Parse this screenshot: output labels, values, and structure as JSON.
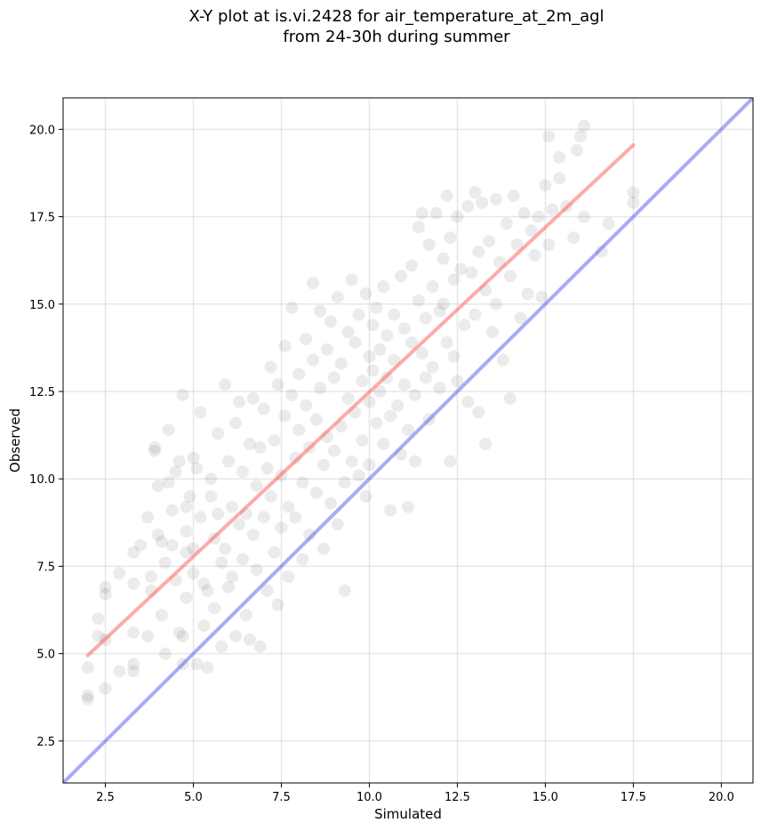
{
  "chart_data": {
    "type": "scatter",
    "title_line1": "X-Y plot at is.vi.2428 for air_temperature_at_2m_agl",
    "title_line2": "from 24-30h during summer",
    "xlabel": "Simulated",
    "ylabel": "Observed",
    "xlim": [
      1.3,
      20.9
    ],
    "ylim": [
      1.3,
      20.9
    ],
    "xticks": [
      2.5,
      5.0,
      7.5,
      10.0,
      12.5,
      15.0,
      17.5,
      20.0
    ],
    "yticks": [
      2.5,
      5.0,
      7.5,
      10.0,
      12.5,
      15.0,
      17.5,
      20.0
    ],
    "xtick_labels": [
      "2.5",
      "5.0",
      "7.5",
      "10.0",
      "12.5",
      "15.0",
      "17.5",
      "20.0"
    ],
    "ytick_labels": [
      "2.5",
      "5.0",
      "7.5",
      "10.0",
      "12.5",
      "15.0",
      "17.5",
      "20.0"
    ],
    "grid": true,
    "point_color": "#000000",
    "point_opacity": 0.08,
    "reference_lines": [
      {
        "color": "#ff5555",
        "x": [
          2.0,
          17.5
        ],
        "y": [
          4.95,
          19.55
        ]
      },
      {
        "color": "#5555ee",
        "x": [
          1.3,
          20.9
        ],
        "y": [
          1.3,
          20.9
        ]
      }
    ],
    "points": [
      [
        2.0,
        3.7
      ],
      [
        2.0,
        3.8
      ],
      [
        2.0,
        4.6
      ],
      [
        2.3,
        5.5
      ],
      [
        2.3,
        6.0
      ],
      [
        2.5,
        4.0
      ],
      [
        2.5,
        5.4
      ],
      [
        2.5,
        6.7
      ],
      [
        2.5,
        6.9
      ],
      [
        2.9,
        4.5
      ],
      [
        2.9,
        7.3
      ],
      [
        3.3,
        4.5
      ],
      [
        3.3,
        4.7
      ],
      [
        3.3,
        5.6
      ],
      [
        3.3,
        7.0
      ],
      [
        3.3,
        7.9
      ],
      [
        3.5,
        8.1
      ],
      [
        3.7,
        8.9
      ],
      [
        3.7,
        5.5
      ],
      [
        3.8,
        6.8
      ],
      [
        3.8,
        7.2
      ],
      [
        3.9,
        10.8
      ],
      [
        3.9,
        10.9
      ],
      [
        4.0,
        9.8
      ],
      [
        4.0,
        8.4
      ],
      [
        4.1,
        8.2
      ],
      [
        4.1,
        6.1
      ],
      [
        4.2,
        7.6
      ],
      [
        4.2,
        5.0
      ],
      [
        4.3,
        9.9
      ],
      [
        4.3,
        11.4
      ],
      [
        4.4,
        8.1
      ],
      [
        4.4,
        9.1
      ],
      [
        4.5,
        7.1
      ],
      [
        4.5,
        10.2
      ],
      [
        4.6,
        10.5
      ],
      [
        4.6,
        5.6
      ],
      [
        4.7,
        5.5
      ],
      [
        4.7,
        12.4
      ],
      [
        4.7,
        4.7
      ],
      [
        4.8,
        6.6
      ],
      [
        4.8,
        7.9
      ],
      [
        4.8,
        9.2
      ],
      [
        4.8,
        8.5
      ],
      [
        4.9,
        9.5
      ],
      [
        5.0,
        10.6
      ],
      [
        5.0,
        7.3
      ],
      [
        5.0,
        8.0
      ],
      [
        5.1,
        10.3
      ],
      [
        5.1,
        4.7
      ],
      [
        5.2,
        11.9
      ],
      [
        5.2,
        8.9
      ],
      [
        5.3,
        5.8
      ],
      [
        5.3,
        7.0
      ],
      [
        5.4,
        6.8
      ],
      [
        5.4,
        4.6
      ],
      [
        5.5,
        9.5
      ],
      [
        5.5,
        10.0
      ],
      [
        5.6,
        8.3
      ],
      [
        5.6,
        6.3
      ],
      [
        5.7,
        11.3
      ],
      [
        5.7,
        9.0
      ],
      [
        5.8,
        7.6
      ],
      [
        5.8,
        5.2
      ],
      [
        5.9,
        12.7
      ],
      [
        5.9,
        8.0
      ],
      [
        6.0,
        6.9
      ],
      [
        6.0,
        10.5
      ],
      [
        6.1,
        9.2
      ],
      [
        6.1,
        7.2
      ],
      [
        6.2,
        11.6
      ],
      [
        6.2,
        5.5
      ],
      [
        6.3,
        12.2
      ],
      [
        6.3,
        8.7
      ],
      [
        6.4,
        7.7
      ],
      [
        6.4,
        10.2
      ],
      [
        6.5,
        9.0
      ],
      [
        6.5,
        6.1
      ],
      [
        6.6,
        11.0
      ],
      [
        6.6,
        5.4
      ],
      [
        6.7,
        12.3
      ],
      [
        6.7,
        8.4
      ],
      [
        6.8,
        7.4
      ],
      [
        6.8,
        9.8
      ],
      [
        6.9,
        10.9
      ],
      [
        6.9,
        5.2
      ],
      [
        7.0,
        12.0
      ],
      [
        7.0,
        8.9
      ],
      [
        7.1,
        6.8
      ],
      [
        7.1,
        10.3
      ],
      [
        7.2,
        9.5
      ],
      [
        7.2,
        13.2
      ],
      [
        7.3,
        11.1
      ],
      [
        7.3,
        7.9
      ],
      [
        7.4,
        6.4
      ],
      [
        7.4,
        12.7
      ],
      [
        7.5,
        10.1
      ],
      [
        7.5,
        8.6
      ],
      [
        7.6,
        13.8
      ],
      [
        7.6,
        11.8
      ],
      [
        7.7,
        9.2
      ],
      [
        7.7,
        7.2
      ],
      [
        7.8,
        14.9
      ],
      [
        7.8,
        12.4
      ],
      [
        7.9,
        10.6
      ],
      [
        7.9,
        8.9
      ],
      [
        8.0,
        13.0
      ],
      [
        8.0,
        11.4
      ],
      [
        8.1,
        9.9
      ],
      [
        8.1,
        7.7
      ],
      [
        8.2,
        14.0
      ],
      [
        8.2,
        12.1
      ],
      [
        8.3,
        10.9
      ],
      [
        8.3,
        8.4
      ],
      [
        8.4,
        15.6
      ],
      [
        8.4,
        13.4
      ],
      [
        8.5,
        11.7
      ],
      [
        8.5,
        9.6
      ],
      [
        8.6,
        14.8
      ],
      [
        8.6,
        12.6
      ],
      [
        8.7,
        10.4
      ],
      [
        8.7,
        8.0
      ],
      [
        8.8,
        13.7
      ],
      [
        8.8,
        11.2
      ],
      [
        8.9,
        9.3
      ],
      [
        8.9,
        14.5
      ],
      [
        9.0,
        12.9
      ],
      [
        9.0,
        10.8
      ],
      [
        9.1,
        8.7
      ],
      [
        9.1,
        15.2
      ],
      [
        9.2,
        13.3
      ],
      [
        9.2,
        11.5
      ],
      [
        9.3,
        9.9
      ],
      [
        9.3,
        6.8
      ],
      [
        9.4,
        14.2
      ],
      [
        9.4,
        12.3
      ],
      [
        9.5,
        10.5
      ],
      [
        9.5,
        15.7
      ],
      [
        9.6,
        13.9
      ],
      [
        9.6,
        11.9
      ],
      [
        9.7,
        10.1
      ],
      [
        9.7,
        14.7
      ],
      [
        9.8,
        12.8
      ],
      [
        9.8,
        11.1
      ],
      [
        9.9,
        9.5
      ],
      [
        9.9,
        15.3
      ],
      [
        10.0,
        13.5
      ],
      [
        10.0,
        12.2
      ],
      [
        10.0,
        10.4
      ],
      [
        10.1,
        14.4
      ],
      [
        10.1,
        13.1
      ],
      [
        10.2,
        11.6
      ],
      [
        10.2,
        14.9
      ],
      [
        10.3,
        13.7
      ],
      [
        10.3,
        12.5
      ],
      [
        10.4,
        11.0
      ],
      [
        10.4,
        15.5
      ],
      [
        10.5,
        14.1
      ],
      [
        10.5,
        12.9
      ],
      [
        10.6,
        11.8
      ],
      [
        10.6,
        9.1
      ],
      [
        10.7,
        14.7
      ],
      [
        10.7,
        13.4
      ],
      [
        10.8,
        12.1
      ],
      [
        10.9,
        15.8
      ],
      [
        10.9,
        10.7
      ],
      [
        11.0,
        14.3
      ],
      [
        11.0,
        12.7
      ],
      [
        11.1,
        11.4
      ],
      [
        11.1,
        9.2
      ],
      [
        11.2,
        16.1
      ],
      [
        11.2,
        13.9
      ],
      [
        11.3,
        12.4
      ],
      [
        11.3,
        10.5
      ],
      [
        11.4,
        17.2
      ],
      [
        11.4,
        15.1
      ],
      [
        11.5,
        13.6
      ],
      [
        11.5,
        17.6
      ],
      [
        11.6,
        14.6
      ],
      [
        11.6,
        12.9
      ],
      [
        11.7,
        16.7
      ],
      [
        11.7,
        11.7
      ],
      [
        11.8,
        15.5
      ],
      [
        11.8,
        13.2
      ],
      [
        11.9,
        17.6
      ],
      [
        12.0,
        14.8
      ],
      [
        12.0,
        12.6
      ],
      [
        12.1,
        16.3
      ],
      [
        12.1,
        15.0
      ],
      [
        12.2,
        18.1
      ],
      [
        12.2,
        13.9
      ],
      [
        12.3,
        16.9
      ],
      [
        12.3,
        10.5
      ],
      [
        12.4,
        15.7
      ],
      [
        12.4,
        13.5
      ],
      [
        12.5,
        17.5
      ],
      [
        12.5,
        12.8
      ],
      [
        12.6,
        16.0
      ],
      [
        12.7,
        14.4
      ],
      [
        12.8,
        17.8
      ],
      [
        12.8,
        12.2
      ],
      [
        12.9,
        15.9
      ],
      [
        13.0,
        18.2
      ],
      [
        13.0,
        14.7
      ],
      [
        13.1,
        16.5
      ],
      [
        13.1,
        11.9
      ],
      [
        13.2,
        17.9
      ],
      [
        13.3,
        15.4
      ],
      [
        13.3,
        11.0
      ],
      [
        13.4,
        16.8
      ],
      [
        13.5,
        14.2
      ],
      [
        13.6,
        18.0
      ],
      [
        13.6,
        15.0
      ],
      [
        13.7,
        16.2
      ],
      [
        13.8,
        13.4
      ],
      [
        13.9,
        17.3
      ],
      [
        14.0,
        12.3
      ],
      [
        14.0,
        15.8
      ],
      [
        14.1,
        18.1
      ],
      [
        14.2,
        16.7
      ],
      [
        14.3,
        14.6
      ],
      [
        14.4,
        17.6
      ],
      [
        14.5,
        15.3
      ],
      [
        14.6,
        17.1
      ],
      [
        14.7,
        16.4
      ],
      [
        14.8,
        17.5
      ],
      [
        14.9,
        15.2
      ],
      [
        15.0,
        18.4
      ],
      [
        15.1,
        16.7
      ],
      [
        15.1,
        19.8
      ],
      [
        15.2,
        17.7
      ],
      [
        15.4,
        18.6
      ],
      [
        15.4,
        19.2
      ],
      [
        15.6,
        17.8
      ],
      [
        15.8,
        16.9
      ],
      [
        15.9,
        19.4
      ],
      [
        16.0,
        19.8
      ],
      [
        16.1,
        17.5
      ],
      [
        16.1,
        20.1
      ],
      [
        16.6,
        16.5
      ],
      [
        16.8,
        17.3
      ],
      [
        17.5,
        17.9
      ],
      [
        17.5,
        18.2
      ]
    ]
  }
}
